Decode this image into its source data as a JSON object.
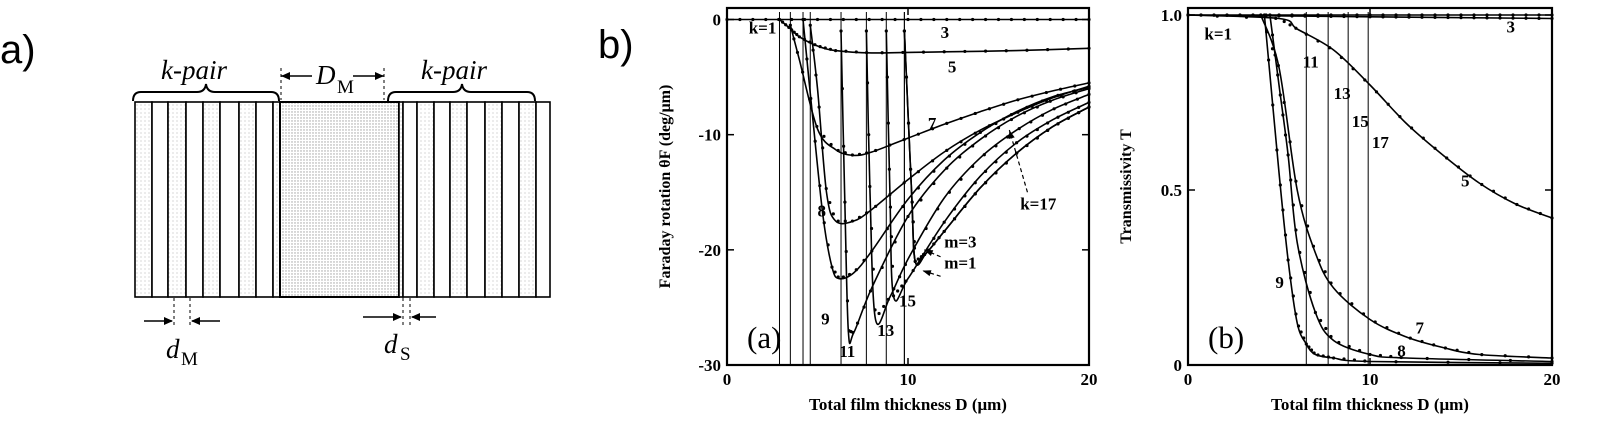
{
  "figure": {
    "label_a": "a)",
    "label_b": "b)"
  },
  "schematic": {
    "left_group_label": "k-pair",
    "right_group_label": "k-pair",
    "defect_label": "D",
    "defect_sub": "M",
    "dm_label": "d",
    "dm_sub": "M",
    "ds_label": "d",
    "ds_sub": "S"
  },
  "chart_data": [
    {
      "type": "line",
      "panel_label": "(a)",
      "xlabel": "Total film thickness D (μm)",
      "ylabel": "Faraday rotation θF (deg/μm)",
      "xlim": [
        0,
        20
      ],
      "ylim": [
        -30,
        1
      ],
      "xticks": [
        "0",
        "10",
        "20"
      ],
      "yticks": [
        "0",
        "-10",
        "-20",
        "-30"
      ],
      "series": [
        {
          "name": "k=1",
          "x": [
            0,
            20
          ],
          "y": [
            0,
            0
          ]
        },
        {
          "name": "3",
          "x": [
            2.9,
            3.5,
            4,
            5,
            6,
            8,
            12,
            16,
            20
          ],
          "y": [
            0,
            -0.8,
            -1.5,
            -2.3,
            -2.7,
            -2.9,
            -2.8,
            -2.7,
            -2.5
          ]
        },
        {
          "name": "5",
          "x": [
            3.5,
            4,
            5,
            6,
            7,
            8,
            10,
            12,
            14,
            16,
            18,
            20
          ],
          "y": [
            -0.5,
            -3.5,
            -9.5,
            -11.3,
            -11.8,
            -11.5,
            -10.3,
            -9.1,
            -8.0,
            -7.0,
            -6.2,
            -5.5
          ]
        },
        {
          "name": "7",
          "x": [
            4.6,
            5,
            5.5,
            6,
            7,
            8,
            10,
            12,
            14,
            16,
            18,
            20
          ],
          "y": [
            -0.5,
            -6,
            -15,
            -17.5,
            -17.5,
            -16.5,
            -13.9,
            -11.5,
            -9.6,
            -8.1,
            -6.8,
            -5.8
          ]
        },
        {
          "name": "8",
          "x": [
            4.2,
            4.7,
            5.3,
            5.8,
            6.2,
            7,
            8,
            10,
            12,
            14,
            16,
            18,
            20
          ],
          "y": [
            0,
            -8,
            -17,
            -21.5,
            -22.5,
            -22,
            -20.1,
            -15.6,
            -12.2,
            -9.8,
            -8.0,
            -6.7,
            -5.9
          ]
        },
        {
          "name": "9",
          "x": [
            6.3,
            6.5,
            6.7,
            7,
            8,
            10,
            12,
            14,
            16,
            18,
            20
          ],
          "y": [
            -1,
            -15,
            -27,
            -27.2,
            -23.3,
            -17.1,
            -13.1,
            -10.4,
            -8.4,
            -7.0,
            -6.0
          ]
        },
        {
          "name": "11",
          "x": [
            7.7,
            7.9,
            8.2,
            9,
            10,
            12,
            14,
            16,
            18,
            20
          ],
          "y": [
            -1,
            -15,
            -26,
            -24.1,
            -20.8,
            -15.5,
            -12.0,
            -9.6,
            -7.8,
            -6.5
          ]
        },
        {
          "name": "13",
          "x": [
            8.8,
            9,
            9.2,
            10,
            12,
            14,
            16,
            18,
            20
          ],
          "y": [
            -1,
            -15,
            -24,
            -22.5,
            -17.6,
            -13.6,
            -10.7,
            -8.7,
            -7.2
          ]
        },
        {
          "name": "15",
          "x": [
            9.8,
            10.2,
            10.4,
            11,
            12,
            14,
            16,
            18,
            20
          ],
          "y": [
            -1,
            -15,
            -21,
            -20.3,
            -18.4,
            -14.6,
            -11.6,
            -9.3,
            -7.6
          ]
        },
        {
          "name": "k=17",
          "x": [
            9.8,
            10.2,
            10.4,
            11,
            12,
            14,
            16,
            18,
            20
          ],
          "y": [
            -1,
            -15,
            -21,
            -20.3,
            -18.4,
            -14.6,
            -11.6,
            -9.3,
            -7.6
          ]
        }
      ],
      "curve_labels": [
        {
          "text": "k=1",
          "x": 1.2,
          "y": -1.2
        },
        {
          "text": "3",
          "x": 11.8,
          "y": -1.6
        },
        {
          "text": "5",
          "x": 12.2,
          "y": -4.6
        },
        {
          "text": "7",
          "x": 11.1,
          "y": -9.5
        },
        {
          "text": "8",
          "x": 5.0,
          "y": -17.1
        },
        {
          "text": "9",
          "x": 5.2,
          "y": -26.5
        },
        {
          "text": "11",
          "x": 6.2,
          "y": -29.3
        },
        {
          "text": "13",
          "x": 8.3,
          "y": -27.5
        },
        {
          "text": "15",
          "x": 9.5,
          "y": -24.9
        },
        {
          "text": "k=17",
          "x": 16.2,
          "y": -16.5
        },
        {
          "text": "m=3",
          "x": 12.0,
          "y": -19.8
        },
        {
          "text": "m=1",
          "x": 12.0,
          "y": -21.6
        }
      ],
      "legend": "none",
      "grid": false
    },
    {
      "type": "line",
      "panel_label": "(b)",
      "xlabel": "Total film thickness D (μm)",
      "ylabel": "Transmissivity T",
      "xlim": [
        0,
        20
      ],
      "ylim": [
        0,
        1.02
      ],
      "xticks": [
        "0",
        "10",
        "20"
      ],
      "yticks": [
        "0",
        "0.5",
        "1.0"
      ],
      "series": [
        {
          "name": "k=1",
          "x": [
            0,
            20
          ],
          "y": [
            1,
            1
          ]
        },
        {
          "name": "3",
          "x": [
            0,
            10,
            20
          ],
          "y": [
            1,
            0.995,
            0.99
          ]
        },
        {
          "name": "5",
          "x": [
            0,
            5,
            6,
            8,
            10,
            12,
            14,
            16,
            18,
            20
          ],
          "y": [
            1,
            0.99,
            0.96,
            0.9,
            0.8,
            0.69,
            0.6,
            0.52,
            0.46,
            0.42
          ]
        },
        {
          "name": "7",
          "x": [
            4,
            5,
            6,
            7,
            8,
            10,
            12,
            14,
            16,
            20
          ],
          "y": [
            1,
            0.85,
            0.5,
            0.32,
            0.22,
            0.13,
            0.08,
            0.05,
            0.03,
            0.02
          ]
        },
        {
          "name": "8",
          "x": [
            4.5,
            5,
            5.5,
            6,
            7,
            8,
            10,
            12,
            20
          ],
          "y": [
            1,
            0.8,
            0.6,
            0.35,
            0.15,
            0.07,
            0.03,
            0.02,
            0.01
          ]
        },
        {
          "name": "9",
          "x": [
            4.2,
            5,
            5.5,
            6,
            6.5,
            7,
            8,
            10,
            20
          ],
          "y": [
            1,
            0.55,
            0.3,
            0.12,
            0.06,
            0.03,
            0.02,
            0.01,
            0.005
          ]
        }
      ],
      "curve_labels": [
        {
          "text": "k=1",
          "x": 0.9,
          "y": 0.93
        },
        {
          "text": "3",
          "x": 17.5,
          "y": 0.95
        },
        {
          "text": "5",
          "x": 15.0,
          "y": 0.51
        },
        {
          "text": "7",
          "x": 12.5,
          "y": 0.09
        },
        {
          "text": "8",
          "x": 11.5,
          "y": 0.025
        },
        {
          "text": "9",
          "x": 4.8,
          "y": 0.22
        },
        {
          "text": "11",
          "x": 6.3,
          "y": 0.85
        },
        {
          "text": "13",
          "x": 8.0,
          "y": 0.76
        },
        {
          "text": "15",
          "x": 9.0,
          "y": 0.68
        },
        {
          "text": "17",
          "x": 10.1,
          "y": 0.62
        }
      ],
      "verticals": [
        6.5,
        7.7,
        8.8,
        9.9
      ],
      "legend": "none",
      "grid": false
    }
  ]
}
